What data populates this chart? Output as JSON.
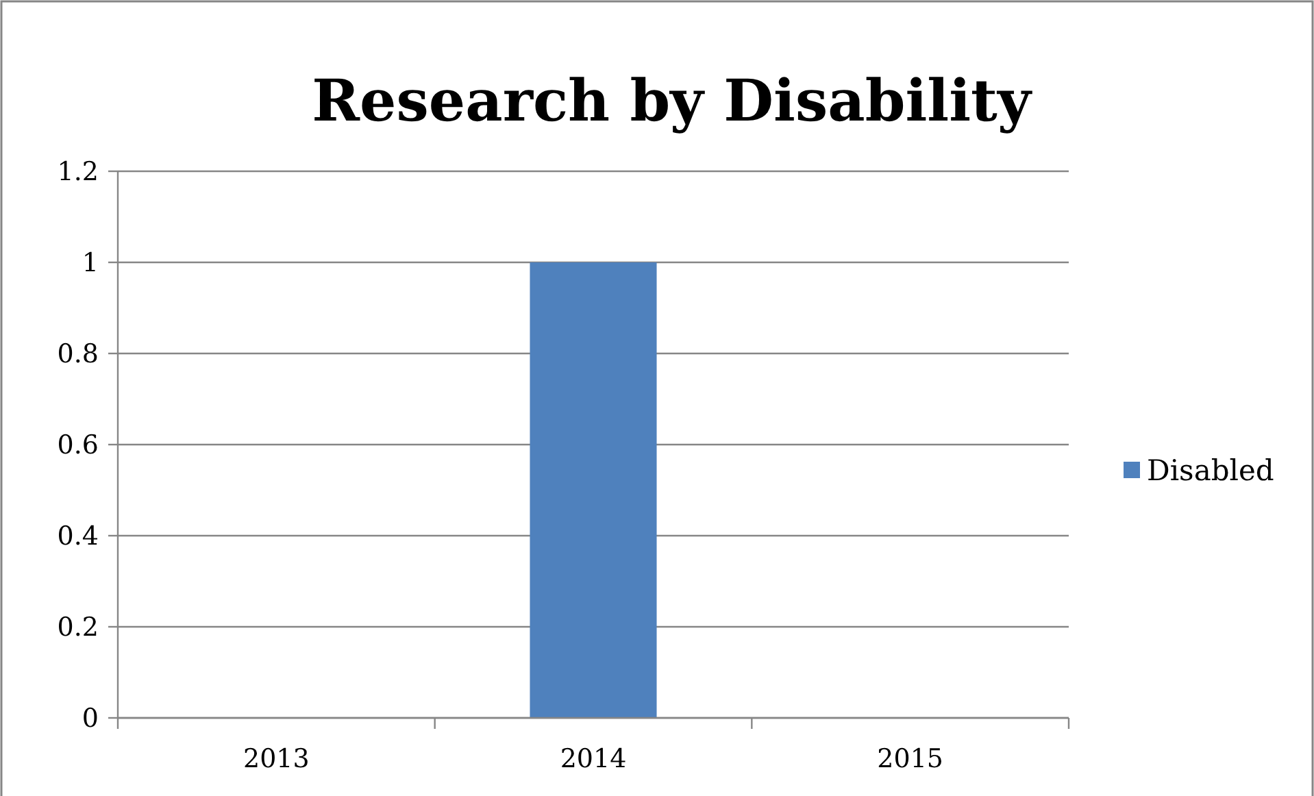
{
  "chart_data": {
    "type": "bar",
    "title": "Research by Disability",
    "categories": [
      "2013",
      "2014",
      "2015"
    ],
    "series": [
      {
        "name": "Disabled",
        "color": "#4f81bd",
        "values": [
          0,
          1,
          0
        ]
      }
    ],
    "ylim": [
      0,
      1.2
    ],
    "yticks": [
      0,
      0.2,
      0.4,
      0.6,
      0.8,
      1,
      1.2
    ],
    "grid": "y",
    "legend": "right"
  }
}
